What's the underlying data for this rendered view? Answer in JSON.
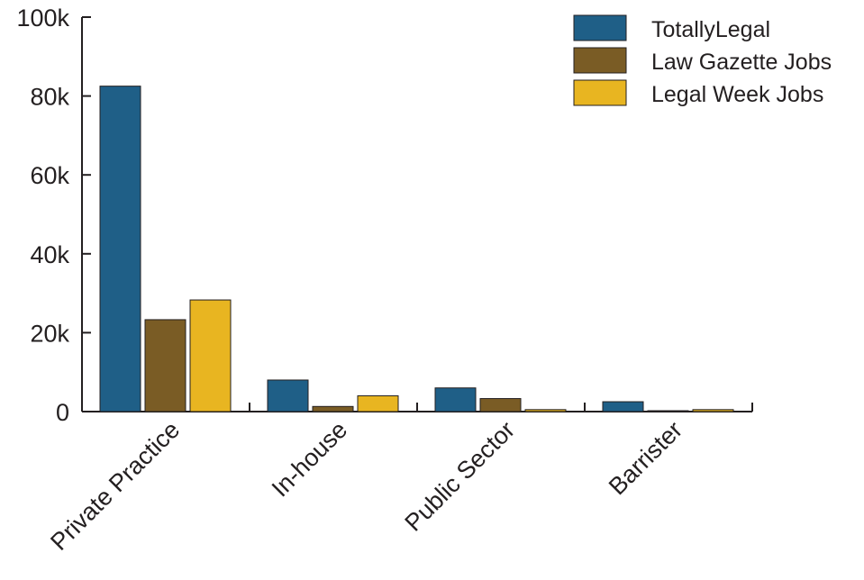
{
  "chart_data": {
    "type": "bar",
    "title": "",
    "xlabel": "",
    "ylabel": "",
    "categories": [
      "Private Practice",
      "In-house",
      "Public Sector",
      "Barrister"
    ],
    "series": [
      {
        "name": "TotallyLegal",
        "color": "#1f5f87",
        "values": [
          82500,
          8000,
          6000,
          2500
        ]
      },
      {
        "name": "Law Gazette Jobs",
        "color": "#7a5c25",
        "values": [
          23300,
          1300,
          3300,
          200
        ]
      },
      {
        "name": "Legal Week Jobs",
        "color": "#e8b521",
        "values": [
          28300,
          4000,
          500,
          500
        ]
      }
    ],
    "ylim": [
      0,
      100000
    ],
    "yticks": [
      0,
      20000,
      40000,
      60000,
      80000,
      100000
    ],
    "ytick_labels": [
      "0",
      "20k",
      "40k",
      "60k",
      "80k",
      "100k"
    ],
    "grid": false,
    "legend_position": "top-right"
  }
}
